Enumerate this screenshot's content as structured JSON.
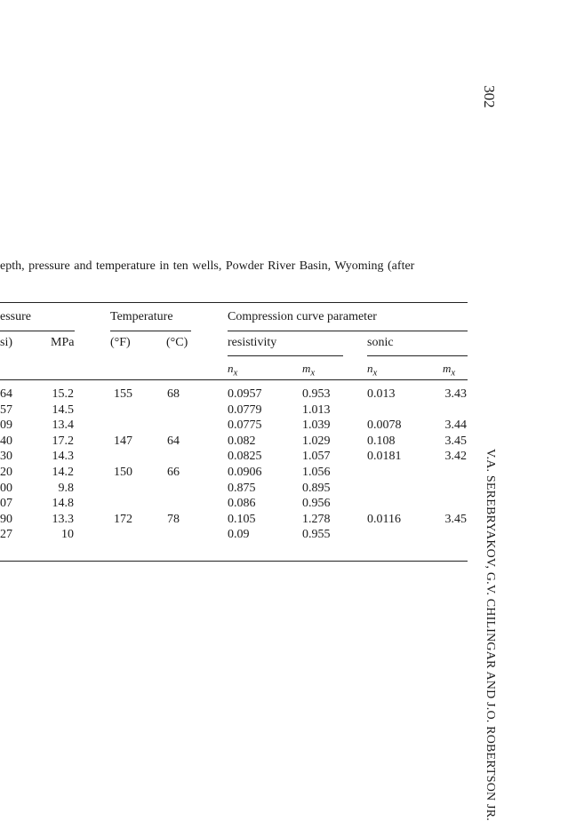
{
  "page_number": "302",
  "running_header": "V.A. SEREBRYAKOV, G.V. CHILINGAR AND J.O. ROBERTSON JR.",
  "caption": "epth, pressure and temperature in ten wells, Powder River Basin, Wyoming (after",
  "table": {
    "group_headers": {
      "pressure": "essure",
      "temperature": "Temperature",
      "compression": "Compression curve parameter"
    },
    "sub_headers": {
      "psi": "si)",
      "mpa": "MPa",
      "f": "(°F)",
      "c": "(°C)",
      "resistivity": "resistivity",
      "sonic": "sonic"
    },
    "param_headers": {
      "res_n": "n",
      "res_m": "m",
      "son_n": "n",
      "son_m": "m",
      "sub": "x"
    },
    "rows": [
      {
        "psi": "64",
        "mpa": "15.2",
        "f": "155",
        "c": "68",
        "res_n": "0.0957",
        "res_m": "0.953",
        "son_n": "0.013",
        "son_m": "3.43"
      },
      {
        "psi": "57",
        "mpa": "14.5",
        "f": "",
        "c": "",
        "res_n": "0.0779",
        "res_m": "1.013",
        "son_n": "",
        "son_m": ""
      },
      {
        "psi": "09",
        "mpa": "13.4",
        "f": "",
        "c": "",
        "res_n": "0.0775",
        "res_m": "1.039",
        "son_n": "0.0078",
        "son_m": "3.44"
      },
      {
        "psi": "40",
        "mpa": "17.2",
        "f": "147",
        "c": "64",
        "res_n": "0.082",
        "res_m": "1.029",
        "son_n": "0.108",
        "son_m": "3.45"
      },
      {
        "psi": "30",
        "mpa": "14.3",
        "f": "",
        "c": "",
        "res_n": "0.0825",
        "res_m": "1.057",
        "son_n": "0.0181",
        "son_m": "3.42"
      },
      {
        "psi": "20",
        "mpa": "14.2",
        "f": "150",
        "c": "66",
        "res_n": "0.0906",
        "res_m": "1.056",
        "son_n": "",
        "son_m": ""
      },
      {
        "psi": "00",
        "mpa": "9.8",
        "f": "",
        "c": "",
        "res_n": "0.875",
        "res_m": "0.895",
        "son_n": "",
        "son_m": ""
      },
      {
        "psi": "07",
        "mpa": "14.8",
        "f": "",
        "c": "",
        "res_n": "0.086",
        "res_m": "0.956",
        "son_n": "",
        "son_m": ""
      },
      {
        "psi": "90",
        "mpa": "13.3",
        "f": "172",
        "c": "78",
        "res_n": "0.105",
        "res_m": "1.278",
        "son_n": "0.0116",
        "son_m": "3.45"
      },
      {
        "psi": "27",
        "mpa": "10",
        "f": "",
        "c": "",
        "res_n": "0.09",
        "res_m": "0.955",
        "son_n": "",
        "son_m": ""
      }
    ]
  }
}
